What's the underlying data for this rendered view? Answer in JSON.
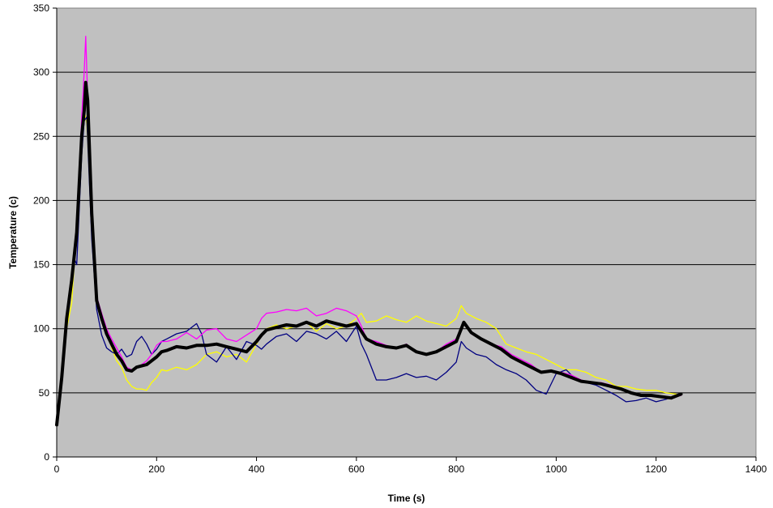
{
  "chart_data": {
    "type": "line",
    "title": "",
    "xlabel": "Time (s)",
    "ylabel": "Temperature (c)",
    "xlim": [
      0,
      1400
    ],
    "ylim": [
      0,
      350
    ],
    "x_ticks": [
      0,
      200,
      400,
      600,
      800,
      1000,
      1200,
      1400
    ],
    "y_ticks": [
      0,
      50,
      100,
      150,
      200,
      250,
      300,
      350
    ],
    "grid": "horizontal",
    "legend": "none",
    "background_color": "#c0c0c0",
    "series": [
      {
        "color": "#ffff00",
        "line_width": 1.3,
        "points": [
          [
            0,
            25
          ],
          [
            10,
            60
          ],
          [
            20,
            100
          ],
          [
            30,
            120
          ],
          [
            40,
            180
          ],
          [
            50,
            240
          ],
          [
            55,
            270
          ],
          [
            60,
            260
          ],
          [
            70,
            180
          ],
          [
            80,
            120
          ],
          [
            90,
            110
          ],
          [
            100,
            100
          ],
          [
            110,
            85
          ],
          [
            120,
            75
          ],
          [
            130,
            70
          ],
          [
            140,
            60
          ],
          [
            150,
            55
          ],
          [
            160,
            53
          ],
          [
            170,
            53
          ],
          [
            180,
            52
          ],
          [
            190,
            58
          ],
          [
            200,
            62
          ],
          [
            210,
            68
          ],
          [
            220,
            67
          ],
          [
            240,
            70
          ],
          [
            260,
            68
          ],
          [
            280,
            72
          ],
          [
            300,
            80
          ],
          [
            320,
            82
          ],
          [
            340,
            78
          ],
          [
            360,
            80
          ],
          [
            380,
            74
          ],
          [
            400,
            88
          ],
          [
            410,
            95
          ],
          [
            420,
            100
          ],
          [
            440,
            103
          ],
          [
            460,
            100
          ],
          [
            480,
            102
          ],
          [
            500,
            105
          ],
          [
            520,
            98
          ],
          [
            540,
            104
          ],
          [
            560,
            100
          ],
          [
            580,
            102
          ],
          [
            600,
            108
          ],
          [
            610,
            112
          ],
          [
            620,
            105
          ],
          [
            640,
            106
          ],
          [
            660,
            110
          ],
          [
            680,
            107
          ],
          [
            700,
            105
          ],
          [
            720,
            110
          ],
          [
            740,
            106
          ],
          [
            760,
            104
          ],
          [
            780,
            102
          ],
          [
            800,
            108
          ],
          [
            810,
            118
          ],
          [
            820,
            112
          ],
          [
            840,
            108
          ],
          [
            860,
            105
          ],
          [
            880,
            100
          ],
          [
            900,
            88
          ],
          [
            920,
            85
          ],
          [
            940,
            82
          ],
          [
            960,
            80
          ],
          [
            980,
            76
          ],
          [
            1000,
            72
          ],
          [
            1020,
            68
          ],
          [
            1040,
            68
          ],
          [
            1060,
            66
          ],
          [
            1080,
            62
          ],
          [
            1100,
            60
          ],
          [
            1120,
            55
          ],
          [
            1140,
            55
          ],
          [
            1160,
            53
          ],
          [
            1180,
            52
          ],
          [
            1200,
            52
          ],
          [
            1220,
            50
          ],
          [
            1240,
            49
          ],
          [
            1250,
            48
          ]
        ]
      },
      {
        "color": "#000080",
        "line_width": 1.3,
        "points": [
          [
            0,
            25
          ],
          [
            10,
            65
          ],
          [
            20,
            110
          ],
          [
            30,
            140
          ],
          [
            35,
            155
          ],
          [
            40,
            150
          ],
          [
            50,
            235
          ],
          [
            55,
            262
          ],
          [
            60,
            265
          ],
          [
            70,
            170
          ],
          [
            80,
            115
          ],
          [
            90,
            95
          ],
          [
            100,
            85
          ],
          [
            110,
            82
          ],
          [
            120,
            80
          ],
          [
            130,
            84
          ],
          [
            140,
            78
          ],
          [
            150,
            80
          ],
          [
            160,
            90
          ],
          [
            170,
            94
          ],
          [
            180,
            88
          ],
          [
            190,
            80
          ],
          [
            200,
            84
          ],
          [
            210,
            90
          ],
          [
            220,
            92
          ],
          [
            240,
            96
          ],
          [
            260,
            98
          ],
          [
            280,
            104
          ],
          [
            290,
            96
          ],
          [
            300,
            80
          ],
          [
            320,
            74
          ],
          [
            340,
            86
          ],
          [
            360,
            76
          ],
          [
            380,
            90
          ],
          [
            400,
            87
          ],
          [
            410,
            84
          ],
          [
            420,
            88
          ],
          [
            440,
            94
          ],
          [
            460,
            96
          ],
          [
            480,
            90
          ],
          [
            500,
            98
          ],
          [
            520,
            96
          ],
          [
            540,
            92
          ],
          [
            560,
            98
          ],
          [
            580,
            90
          ],
          [
            600,
            102
          ],
          [
            610,
            88
          ],
          [
            620,
            80
          ],
          [
            640,
            60
          ],
          [
            660,
            60
          ],
          [
            680,
            62
          ],
          [
            700,
            65
          ],
          [
            720,
            62
          ],
          [
            740,
            63
          ],
          [
            760,
            60
          ],
          [
            780,
            66
          ],
          [
            800,
            74
          ],
          [
            810,
            90
          ],
          [
            820,
            85
          ],
          [
            840,
            80
          ],
          [
            860,
            78
          ],
          [
            880,
            72
          ],
          [
            900,
            68
          ],
          [
            920,
            65
          ],
          [
            940,
            60
          ],
          [
            960,
            52
          ],
          [
            980,
            49
          ],
          [
            1000,
            65
          ],
          [
            1020,
            68
          ],
          [
            1040,
            60
          ],
          [
            1060,
            58
          ],
          [
            1080,
            56
          ],
          [
            1100,
            52
          ],
          [
            1120,
            48
          ],
          [
            1140,
            43
          ],
          [
            1160,
            44
          ],
          [
            1180,
            46
          ],
          [
            1200,
            43
          ],
          [
            1220,
            45
          ],
          [
            1240,
            48
          ],
          [
            1250,
            48
          ]
        ]
      },
      {
        "color": "#ff00ff",
        "line_width": 1.3,
        "points": [
          [
            0,
            25
          ],
          [
            10,
            62
          ],
          [
            20,
            105
          ],
          [
            30,
            135
          ],
          [
            40,
            175
          ],
          [
            50,
            265
          ],
          [
            55,
            300
          ],
          [
            58,
            328
          ],
          [
            62,
            280
          ],
          [
            70,
            200
          ],
          [
            80,
            125
          ],
          [
            90,
            112
          ],
          [
            100,
            100
          ],
          [
            110,
            92
          ],
          [
            120,
            85
          ],
          [
            130,
            78
          ],
          [
            140,
            70
          ],
          [
            150,
            68
          ],
          [
            160,
            70
          ],
          [
            170,
            72
          ],
          [
            180,
            75
          ],
          [
            190,
            80
          ],
          [
            200,
            87
          ],
          [
            210,
            90
          ],
          [
            220,
            90
          ],
          [
            240,
            92
          ],
          [
            260,
            97
          ],
          [
            280,
            92
          ],
          [
            300,
            99
          ],
          [
            320,
            100
          ],
          [
            340,
            92
          ],
          [
            360,
            90
          ],
          [
            380,
            95
          ],
          [
            400,
            100
          ],
          [
            410,
            108
          ],
          [
            420,
            112
          ],
          [
            440,
            113
          ],
          [
            460,
            115
          ],
          [
            480,
            114
          ],
          [
            500,
            116
          ],
          [
            520,
            110
          ],
          [
            540,
            112
          ],
          [
            560,
            116
          ],
          [
            580,
            114
          ],
          [
            600,
            110
          ],
          [
            610,
            102
          ],
          [
            620,
            92
          ],
          [
            640,
            90
          ],
          [
            660,
            87
          ],
          [
            680,
            85
          ],
          [
            700,
            88
          ],
          [
            720,
            82
          ],
          [
            740,
            80
          ],
          [
            760,
            82
          ],
          [
            780,
            88
          ],
          [
            800,
            92
          ],
          [
            815,
            104
          ],
          [
            830,
            96
          ],
          [
            850,
            92
          ],
          [
            870,
            88
          ],
          [
            890,
            86
          ],
          [
            910,
            80
          ],
          [
            930,
            76
          ],
          [
            950,
            72
          ],
          [
            970,
            66
          ],
          [
            990,
            67
          ],
          [
            1010,
            66
          ],
          [
            1030,
            64
          ],
          [
            1050,
            60
          ],
          [
            1070,
            58
          ],
          [
            1090,
            58
          ],
          [
            1110,
            56
          ],
          [
            1130,
            53
          ],
          [
            1150,
            50
          ],
          [
            1170,
            48
          ],
          [
            1190,
            48
          ],
          [
            1210,
            47
          ],
          [
            1230,
            46
          ],
          [
            1250,
            48
          ]
        ]
      },
      {
        "color": "#000000",
        "line_width": 4,
        "points": [
          [
            0,
            25
          ],
          [
            10,
            62
          ],
          [
            20,
            108
          ],
          [
            30,
            138
          ],
          [
            40,
            175
          ],
          [
            50,
            250
          ],
          [
            55,
            270
          ],
          [
            58,
            292
          ],
          [
            62,
            278
          ],
          [
            70,
            190
          ],
          [
            80,
            122
          ],
          [
            90,
            108
          ],
          [
            100,
            96
          ],
          [
            110,
            88
          ],
          [
            120,
            80
          ],
          [
            130,
            75
          ],
          [
            140,
            68
          ],
          [
            150,
            67
          ],
          [
            160,
            70
          ],
          [
            170,
            71
          ],
          [
            180,
            72
          ],
          [
            190,
            75
          ],
          [
            200,
            78
          ],
          [
            210,
            82
          ],
          [
            220,
            83
          ],
          [
            240,
            86
          ],
          [
            260,
            85
          ],
          [
            280,
            87
          ],
          [
            300,
            87
          ],
          [
            320,
            88
          ],
          [
            340,
            86
          ],
          [
            360,
            84
          ],
          [
            380,
            82
          ],
          [
            400,
            90
          ],
          [
            410,
            95
          ],
          [
            420,
            99
          ],
          [
            440,
            101
          ],
          [
            460,
            103
          ],
          [
            480,
            102
          ],
          [
            500,
            105
          ],
          [
            520,
            102
          ],
          [
            540,
            106
          ],
          [
            560,
            104
          ],
          [
            580,
            102
          ],
          [
            600,
            104
          ],
          [
            610,
            98
          ],
          [
            620,
            92
          ],
          [
            640,
            88
          ],
          [
            660,
            86
          ],
          [
            680,
            85
          ],
          [
            700,
            87
          ],
          [
            720,
            82
          ],
          [
            740,
            80
          ],
          [
            760,
            82
          ],
          [
            780,
            86
          ],
          [
            800,
            90
          ],
          [
            815,
            105
          ],
          [
            830,
            97
          ],
          [
            850,
            92
          ],
          [
            870,
            88
          ],
          [
            890,
            84
          ],
          [
            910,
            78
          ],
          [
            930,
            74
          ],
          [
            950,
            70
          ],
          [
            970,
            66
          ],
          [
            990,
            67
          ],
          [
            1010,
            65
          ],
          [
            1030,
            62
          ],
          [
            1050,
            59
          ],
          [
            1070,
            58
          ],
          [
            1090,
            57
          ],
          [
            1110,
            55
          ],
          [
            1130,
            53
          ],
          [
            1150,
            50
          ],
          [
            1170,
            48
          ],
          [
            1190,
            48
          ],
          [
            1210,
            47
          ],
          [
            1230,
            46
          ],
          [
            1250,
            49
          ]
        ]
      }
    ]
  }
}
